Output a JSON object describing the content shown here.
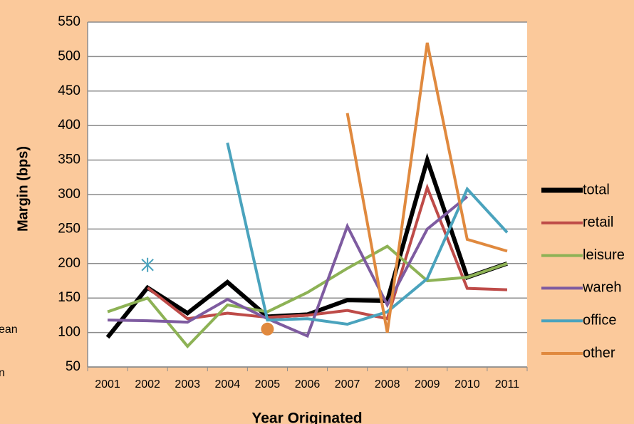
{
  "chart_data": {
    "type": "line",
    "ylabel": "Margin (bps)",
    "xlabel": "Year Originated",
    "categories": [
      "2001",
      "2002",
      "2003",
      "2004",
      "2005",
      "2006",
      "2007",
      "2008",
      "2009",
      "2010",
      "2011"
    ],
    "ylim": [
      50,
      550
    ],
    "yticks": [
      50,
      100,
      150,
      200,
      250,
      300,
      350,
      400,
      450,
      500,
      550
    ],
    "grid": true,
    "legend": "right",
    "series": [
      {
        "name": "total",
        "color": "#000000",
        "values": [
          93,
          165,
          128,
          173,
          123,
          126,
          147,
          146,
          350,
          180,
          200
        ]
      },
      {
        "name": "retail",
        "color": "#be4b48",
        "values": [
          null,
          165,
          120,
          128,
          122,
          125,
          132,
          120,
          310,
          164,
          162
        ]
      },
      {
        "name": "leisure",
        "color": "#8db255",
        "values": [
          130,
          150,
          80,
          140,
          130,
          158,
          193,
          225,
          175,
          180,
          200
        ]
      },
      {
        "name": "wareh",
        "color": "#7e5ba0",
        "values": [
          118,
          117,
          115,
          148,
          120,
          95,
          254,
          140,
          250,
          297,
          null
        ]
      },
      {
        "name": "office",
        "color": "#4aa3bd",
        "values": [
          null,
          null,
          null,
          375,
          118,
          120,
          112,
          130,
          178,
          308,
          245
        ]
      },
      {
        "name": "other",
        "color": "#e0893e",
        "values": [
          null,
          null,
          null,
          null,
          null,
          null,
          418,
          100,
          520,
          235,
          218
        ]
      },
      {
        "color": "#4aa3bd",
        "marker": "asterisk",
        "values": [
          null,
          198,
          null,
          null,
          null,
          null,
          null,
          null,
          null,
          null,
          null
        ]
      },
      {
        "color": "#e0893e",
        "marker": "circle",
        "values": [
          null,
          null,
          null,
          null,
          105,
          null,
          null,
          null,
          null,
          null,
          null
        ]
      }
    ],
    "annotations": [
      "ean",
      "n"
    ]
  }
}
